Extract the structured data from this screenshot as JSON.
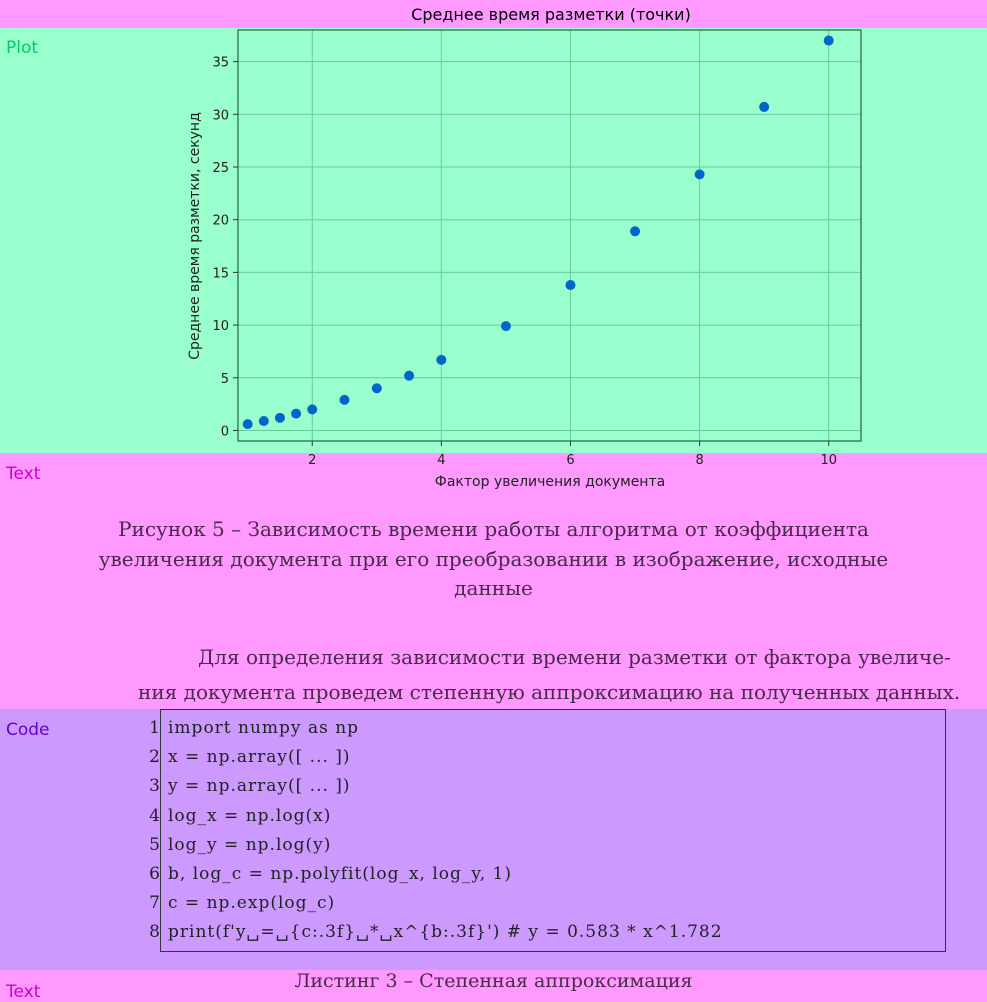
{
  "regions": {
    "plot_label": "Plot",
    "text_label_1": "Text",
    "code_label": "Code",
    "text_label_2": "Text"
  },
  "colors": {
    "plot_bg": "#99ffcc",
    "text_bg": "#ff99ff",
    "code_bg": "#cc99ff",
    "plot_label": "#00cc66",
    "text_label": "#cc00cc",
    "code_label": "#6600cc",
    "point": "#0066cc",
    "grid": "#66cc99"
  },
  "chart_data": {
    "type": "scatter",
    "title": "Среднее время разметки (точки)",
    "xlabel": "Фактор увеличения документа",
    "ylabel": "Среднее время разметки, секунд",
    "xlim": [
      0.85,
      10.5
    ],
    "ylim": [
      -1.0,
      38.0
    ],
    "xticks": [
      2,
      4,
      6,
      8,
      10
    ],
    "yticks": [
      0,
      5,
      10,
      15,
      20,
      25,
      30,
      35
    ],
    "grid": true,
    "x": [
      1.0,
      1.25,
      1.5,
      1.75,
      2.0,
      2.5,
      3.0,
      3.5,
      4.0,
      5.0,
      6.0,
      7.0,
      8.0,
      9.0,
      10.0
    ],
    "y": [
      0.6,
      0.9,
      1.2,
      1.6,
      2.0,
      2.9,
      4.0,
      5.2,
      6.7,
      9.9,
      13.8,
      18.9,
      24.3,
      30.7,
      37.0
    ]
  },
  "caption": {
    "line1": "Рисунок 5 – Зависимость времени работы алгоритма от коэффициента",
    "line2": "увеличения документа при его преобразовании в изображение, исходные",
    "line3": "данные"
  },
  "body_text": {
    "line1": "Для определения зависимости времени разметки от фактора увеличе-",
    "line2": "ния документа проведем степенную аппроксимацию на полученных данных."
  },
  "code": {
    "lines": [
      {
        "no": "1",
        "text": "import numpy as np"
      },
      {
        "no": "2",
        "text": "x = np.array([ ... ])"
      },
      {
        "no": "3",
        "text": "y = np.array([ ... ])"
      },
      {
        "no": "4",
        "text": "log_x = np.log(x)"
      },
      {
        "no": "5",
        "text": "log_y = np.log(y)"
      },
      {
        "no": "6",
        "text": "b, log_c = np.polyfit(log_x, log_y, 1)"
      },
      {
        "no": "7",
        "text": "c = np.exp(log_c)"
      },
      {
        "no": "8",
        "text": "print(f'y␣=␣{c:.3f}␣*␣x^{b:.3f}') # y = 0.583 * x^1.782"
      }
    ]
  },
  "listing_caption": "Листинг 3 – Степенная аппроксимация"
}
